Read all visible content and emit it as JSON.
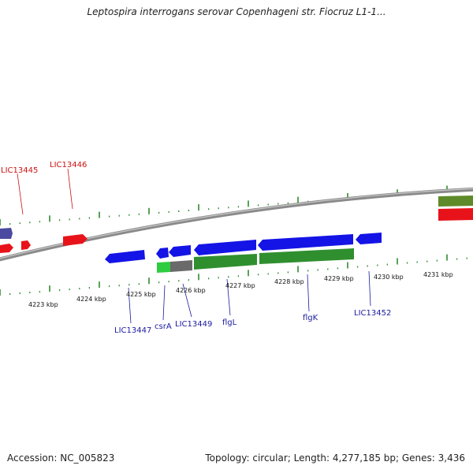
{
  "title": "Leptospira interrogans serovar Copenhageni str. Fiocruz L1-1...",
  "footer": {
    "accession": "Accession: NC_005823",
    "summary": "Topology: circular; Length: 4,277,185 bp; Genes: 3,436"
  },
  "colors": {
    "forward_gene": "#e8131a",
    "reverse_gene": "#1414e6",
    "backbone": "#8a8a8a",
    "cds_track": "#2f8f2f",
    "rna_track": "#5f8a2a",
    "ticks": "#2f8a2f",
    "forward_label": "#cc1111",
    "reverse_label": "#1a1aa0"
  },
  "scale_ticks": [
    "4223 kbp",
    "4224 kbp",
    "4225 kbp",
    "4226 kbp",
    "4227 kbp",
    "4228 kbp",
    "4229 kbp",
    "4230 kbp",
    "4231 kbp"
  ],
  "forward_labels": [
    "LIC13445",
    "LIC13446"
  ],
  "reverse_labels": [
    "LIC13447",
    "csrA",
    "LIC13449",
    "flgL",
    "flgK",
    "LIC13452"
  ]
}
